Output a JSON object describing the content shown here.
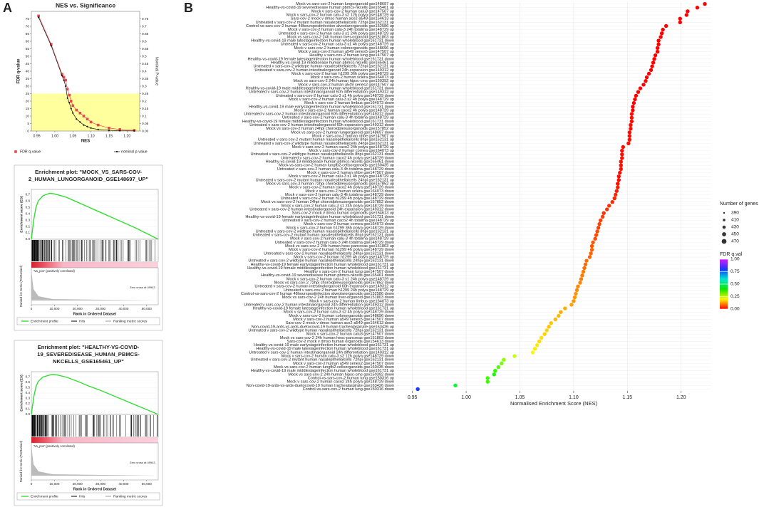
{
  "panel_labels": [
    "A",
    "B"
  ],
  "chart_data": [
    {
      "type": "scatter",
      "title": "NES vs. Significance",
      "x_label": "NES",
      "y_label": "FDR q-value",
      "y2_label": "Nominal P-value",
      "xlim": [
        0.935,
        1.235
      ],
      "ylim": [
        0,
        80
      ],
      "y2lim": [
        0,
        0.8
      ],
      "xticks": [
        0.95,
        {
          "value": 1.0,
          "label": "1.00"
        },
        1.05,
        {
          "value": 1.1,
          "label": "1.10"
        },
        1.15,
        {
          "value": 1.2,
          "label": "1.20"
        }
      ],
      "yticks": [
        0,
        5,
        10,
        15,
        20,
        25,
        30,
        35,
        40,
        45,
        50,
        55,
        60,
        65,
        70,
        75
      ],
      "y2ticks": [
        {
          "value": 0,
          "label": "0.00"
        },
        0.05,
        0.1,
        0.15,
        0.2,
        0.25,
        0.3,
        0.35,
        0.4,
        0.45,
        0.5,
        0.55,
        0.6,
        0.65,
        0.7,
        0.75
      ],
      "highlight_ylim": [
        0,
        25
      ],
      "highlight_color": "#ffff9e",
      "x": [
        0.955,
        0.99,
        1.02,
        1.025,
        1.03,
        1.035,
        1.04,
        1.045,
        1.05,
        1.06,
        1.07,
        1.08,
        1.09,
        1.1,
        1.12,
        1.15,
        1.18,
        1.22
      ],
      "series": [
        {
          "name": "FDR q-value",
          "color": "#e8474b",
          "values": [
            77,
            58,
            38,
            36,
            34,
            28,
            24,
            20,
            17,
            14,
            12,
            10,
            8,
            6,
            4,
            2,
            1,
            0.5
          ]
        },
        {
          "name": "nominal p-value",
          "color": "#111111",
          "axis": "y2",
          "values": [
            0.76,
            0.57,
            0.37,
            0.34,
            0.3,
            0.22,
            0.19,
            0.15,
            0.12,
            0.08,
            0.06,
            0.04,
            0.03,
            0.02,
            0.01,
            0.005,
            0.002,
            0.001
          ]
        }
      ]
    },
    {
      "type": "line",
      "title_lines": [
        "Enrichment plot: \"MOCK_VS_SARS-COV-",
        "2_HUMAN_LUNGORGANOID_GSE148697_UP\""
      ],
      "y_label": "Enrichment score (ES)",
      "y_label_2": "Ranked list metric (PreRanked)",
      "x_label": "Rank in Ordered Dataset",
      "annotations": [
        "'Va_pos' (positively correlated)",
        "Zero cross at 49943"
      ],
      "xlim": [
        0,
        55000
      ],
      "ylim": [
        0,
        0.78
      ],
      "xticks": [
        0,
        {
          "value": 10000,
          "label": "10,000"
        },
        {
          "value": 20000,
          "label": "20,000"
        },
        {
          "value": 30000,
          "label": "30,000"
        },
        {
          "value": 40000,
          "label": "40,000"
        },
        {
          "value": 50000,
          "label": "50,000"
        }
      ],
      "yticks": [
        {
          "value": 0,
          "label": "0.0"
        },
        0.1,
        0.2,
        0.3,
        0.4,
        0.5,
        0.6,
        0.7
      ],
      "x": [
        0,
        1000,
        2000,
        3000,
        5000,
        8000,
        10000,
        15000,
        20000,
        25000,
        30000,
        35000,
        40000,
        45000,
        50000,
        55000
      ],
      "series": [
        {
          "name": "Enrichment profile",
          "color": "#33dd33",
          "values": [
            0,
            0.3,
            0.5,
            0.6,
            0.68,
            0.72,
            0.71,
            0.66,
            0.58,
            0.5,
            0.42,
            0.34,
            0.26,
            0.18,
            0.09,
            0
          ]
        }
      ],
      "other_legend_entries": [
        "Hits",
        "Ranking metric scores"
      ]
    },
    {
      "type": "line",
      "title_lines": [
        "Enrichment plot: \"HEALTHY-VS-COVID-",
        "19_SEVEREDISEASE_HUMAN_PBMCS-",
        "NKCELLS_GSE165461_UP\""
      ],
      "y_label": "Enrichment score (ES)",
      "y_label_2": "Ranked list metric (PreRanked)",
      "x_label": "Rank in Ordered Dataset",
      "annotations": [
        "'Va_pos' (positively correlated)",
        "Zero cross at 49943"
      ],
      "xlim": [
        0,
        55000
      ],
      "ylim": [
        0,
        0.8
      ],
      "xticks": [
        0,
        {
          "value": 10000,
          "label": "10,000"
        },
        {
          "value": 20000,
          "label": "20,000"
        },
        {
          "value": 30000,
          "label": "30,000"
        },
        {
          "value": 40000,
          "label": "40,000"
        },
        {
          "value": 50000,
          "label": "50,000"
        }
      ],
      "yticks": [
        {
          "value": 0,
          "label": "0.0"
        },
        0.1,
        0.2,
        0.3,
        0.4,
        0.5,
        0.6,
        0.7
      ],
      "x": [
        0,
        1000,
        2000,
        3000,
        5000,
        9000,
        11000,
        15000,
        20000,
        25000,
        30000,
        35000,
        40000,
        45000,
        50000,
        55000
      ],
      "series": [
        {
          "name": "Enrichment profile",
          "color": "#33dd33",
          "values": [
            0,
            0.32,
            0.52,
            0.62,
            0.7,
            0.75,
            0.74,
            0.7,
            0.62,
            0.53,
            0.45,
            0.36,
            0.27,
            0.18,
            0.09,
            0
          ]
        }
      ],
      "other_legend_entries": [
        "Hits",
        "Ranking metric scores"
      ]
    },
    {
      "type": "dot",
      "x_label": "Normalised Enrichment Score (NES)",
      "xlim": [
        0.935,
        1.228
      ],
      "xticks": [
        0.95,
        {
          "value": 1.0,
          "label": "1.00"
        },
        1.05,
        {
          "value": 1.1,
          "label": "1.10"
        },
        1.15,
        {
          "value": 1.2,
          "label": "1.20"
        }
      ],
      "grid": true,
      "categories": [
        "Mock vs sars-cov-2 human lungorganoid gse148697 up",
        "Healthy-vs-covid-19 severedisease human pbmcs-nkcells gse165461 up",
        "Mock v sars-cov-2 human calu3 gse147507 up",
        "Mock v sars-cov-2 human calu-3 s2 12h polya gse148729 up",
        "Sars-cov-2 mock v dmso human ace2-a549 gse154613 up",
        "Untreated v sars-cov-2 mutant human nasalepithelialcells 72hpi gse162131 up",
        "Control-vs-sars-cov-2 human 48hourspostinfection alveolarorganoids gse152586 up",
        "Mock v sars-cov-2 human calu-3 24h totalrna gse148729 up",
        "Untreated v sars-cov-2 human calu-3 s1 24h polya gse148729 up",
        "Mock vs sars-cov-2 24h human liver-organoid gse151803 up",
        "Healthy-vs-covid-19 male latestageinfection human wholeblood gse161731 down",
        "Untreated v sars-cov-2 human calu-3 s1 4h polya gse148729 up",
        "Mock v sars-cov-2 human colonorganoids gse148696 up",
        "Mock v sars-cov-2 human a549 series5 gse147507 up",
        "Healthy v sars-cov-2 human lung gse147507 up",
        "Healthy-vs-covid-19 female latestageinfection human wholeblood gse161731 down",
        "Healthy-vs-covid-19 milddisease human pbmcs-nkcells gse165461 up",
        "Untreated v sars-cov-2 wildtype human nasalepithelialcells 72hpi gse162131 up",
        "Untreated v sars-cov-2 human intestinalorganoid 24h expansion gse149312 up",
        "Mock v sars-cov-2 human h1299 36h polya gse148729 up",
        "Mock v sars-cov-2 human sclera gse164073 up",
        "Mock vs sars-cov-2 24h human hipsc-cms gse150392 up",
        "Mock v sars-cov-2 human a549 series2 gse147507 up",
        "Healthy-vs-covid-19 male middlestageinfection human wholeblood gse161731 down",
        "Untreated v sars-cov-2 human intestinalorganoid 60h differentiation gse149312 up",
        "Untreated v sars-cov-2 human calu-3 s1 4h polya gse148729 down",
        "Mock v sars-cov-2 human calu-3 s2 4h polya gse148729 up",
        "Mock v sars-cov-2 human limbus gse164073 down",
        "Healthy-vs-covid-19 male earlystageinfection human wholeblood gse161731 down",
        "Mock v sars-cov-2 human caco2 4h polya gse148729 up",
        "Untreated v sars-cov-2 human intestinalorganoid 60h differentiation gse149312 down",
        "Untreated v sars-cov-2 human calu-3 4h totalrna gse148729 up",
        "Healthy-vs-covid-19 female middlestageinfection human wholeblood gse161731 down",
        "Untreated v sars-cov-2 human intestinalorganoid 60h expansion gse149312 down",
        "Mock vs sars-cov-2 human 24hpi choroidplexusorganoids gse157852 up",
        "Mock vs sars-cov-2 human lungorganoid gse148697 down",
        "Mock v sars-cov-2 human nhbe gse147507 up",
        "Untreated v sars-cov-2 mutant human nasalepithelialcells 8hpi gse162131 up",
        "Untreated v sars-cov-2 wildtype human nasalepithelialcells 24hpi gse162131 up",
        "Mock v sars-cov-2 human caco2 24h polya gse148729 up",
        "Mock v sars-cov-2 human cornea gse164073 up",
        "Untreated v sars-cov-2 wildtype human nasalepithelialcells 8hpi gse162131 down",
        "Untreated v sars-cov-2 human caco2 4h polya gse148729 down",
        "Healthy-vs-covid-19 milddisease human pbmcs-nkcells gse165461 down",
        "Mock-vs-sars-cov-2 human lungfb2-cellsorganoids gse160435 up",
        "Untreated v sars-cov-2 human calu-3 4h totalrna gse148729 down",
        "Mock v sars-cov-2 human nhbe gse147507 down",
        "Mock v sars-cov-2 human calu-3 s1 4h polya gse148729 up",
        "Untreated v sars-cov-2 mutant human nasalepithelialcells 24hpi gse162131 up",
        "Mock vs sars-cov-2 human 72hpi choroidplexusorganoids gse157852 up",
        "Mock v sars-cov-2 human caco2 4h polya gse148729 down",
        "Mock v sars-cov-2 human sclera gse164073 down",
        "Mock v sars-cov-2 human calu-3 4h totalrna gse148729 down",
        "Untreated v sars-cov-2 human h1299 4h polya gse148729 down",
        "Mock vs sars-cov-2 human 24hpi choroidplexusorganoids gse157852 down",
        "Mock v sars-cov-2 human calu-3 s1 24h polya gse148729 down",
        "Untreated v sars-cov-2 human intestinalorganoid 24h expansion gse149312 down",
        "Sars-cov-2 mock v dmso human organoids gse154613 up",
        "Healthy-vs-covid-19 female earlystageinfection human wholeblood gse161731 down",
        "Untreated v sars-cov-2 human caco2 4h totalrna gse148729 up",
        "Mock v sars-cov-2 human cornea gse164073 down",
        "Mock v sars-cov-2 human h1299 36h polya gse148729 down",
        "Untreated v sars-cov-2 wildtype human nasalepithelialcells 8hpi gse162131 up",
        "Untreated v sars-cov-2 mutant human nasalepithelialcells 8hpi gse162131 down",
        "Mock v sars-cov-2 human calu-3 4h totalrna gse148729 up",
        "Untreated v sars-cov-2 human calu-3 24h totalrna gse148729 down",
        "Mock vs sars-cov-2 24h human hesc-pancreas gse151803 up",
        "Mock v sars-cov-2 human h1299 4h polya gse148729 down",
        "Untreated v sars-cov-2 human nasalepithelialcells 24hpi gse162131 down",
        "Mock v sars-cov-2 human h1299 4h polya gse148729 up",
        "Untreated v sars-cov-2 wildtype human nasalepithelialcells 24hpi gse162131 down",
        "Healthy-vs-covid-19 female earlystageinfection human wholeblood gse161731 up",
        "Healthy-vs-covid-19 female middlestageinfection human wholeblood gse161731 up",
        "Healthy v sars-cov-2 human lung gse147507 down",
        "Healthy-vs-covid-19 severedisease human pbmcs-nkcells gse165461 down",
        "Mock v sars-cov-2 human calu-3 s1 24h polya gse148729 up",
        "Mock vs sars-cov-2 72hpi choroidplexusorganoids gse157852 down",
        "Untreated v sars-cov-2 human intestinalorganoid 60h expansion gse149312 up",
        "Untreated v sars-cov-2 human h1299 24h polya gse148729 up",
        "Control-vs-sars-cov-2 human 48hourspostinfection alveolarorganoids gse152586 down",
        "Mock vs sars-cov-2 24h human liver-organoid gse151803 down",
        "Mock v sars-cov-2 human limbus gse164073 up",
        "Untreated v sars-cov-2 human intestinalorganoid 24h differentiation gse149312 down",
        "Healthy-vs-covid-19 female latestageinfection human wholeblood gse161731 up",
        "Mock v sars-cov-2 human calu-3 s2 4h polya gse148729 down",
        "Mock v sars-cov-2 human colonorganoids gse148696 down",
        "Mock v sars-cov-2 human a549 series5 gse147507 down",
        "Sars-cov-2 mock v dmso human ace2-a549 gse154613 down",
        "Non-covid-19-ards-vs-ards-duetocovid-19 human trachealaspirate gse163426 up",
        "Untreated v sars-cov-2 wildtype human nasalepithelialcells 72hpi gse162131 down",
        "Mock v sars-cov-2 human calu3 gse147507 down",
        "Mock vs sars-cov-2 24h human hesc-pancreas gse151803 down",
        "Sars-cov-2 mock v dmso human organoids gse154613 down",
        "Healthy-vs-covid-19 male earlystageinfection human wholeblood gse161731 up",
        "Healthy-vs-covid-19 male latestageinfection human wholeblood gse161731 up",
        "Untreated v sars-cov-2 human intestinalorganoid 24h differentiation gse149312 up",
        "Mock v sars-cov-2 human calu-3 s2 12h polya gse148729 down",
        "Untreated v sars-cov-2 mutant human nasalepithelialcells 72hpi gse162131 down",
        "Mock v sars-cov-2 human a549 series2 gse147507 down",
        "Mock-vs-sars-cov-2 human lungfb2-cellsorganoids gse160435 down",
        "Healthy-vs-covid-19 male middlestageinfection human wholeblood gse161731 up",
        "Mock vs sars-cov-2 24h human hipsc-cms gse150392 down",
        "Control-vs-sars-cov-2 human lung gse150316 up",
        "Mock v sars-cov-2 human caco2 24h polya gse148729 down",
        "Non-covid-19-ards-vs-ards-duetocovid-19 human trachealaspirate gse163426 down",
        "Control-vs-sars-cov-2 human lung gse150316 down"
      ],
      "values": [
        1.222,
        1.215,
        1.206,
        1.205,
        1.199,
        1.199,
        1.186,
        1.183,
        1.182,
        1.181,
        1.179,
        1.179,
        1.178,
        1.178,
        1.176,
        1.175,
        1.174,
        1.173,
        1.172,
        1.17,
        1.168,
        1.167,
        1.165,
        1.162,
        1.16,
        1.158,
        1.157,
        1.156,
        1.155,
        1.155,
        1.154,
        1.154,
        1.154,
        1.153,
        1.153,
        1.152,
        1.152,
        1.152,
        1.151,
        1.146,
        1.145,
        1.145,
        1.145,
        1.144,
        1.144,
        1.144,
        1.143,
        1.142,
        1.142,
        1.141,
        1.141,
        1.14,
        1.139,
        1.138,
        1.136,
        1.133,
        1.131,
        1.128,
        1.127,
        1.125,
        1.124,
        1.123,
        1.122,
        1.121,
        1.12,
        1.118,
        1.117,
        1.117,
        1.116,
        1.115,
        1.112,
        1.111,
        1.11,
        1.109,
        1.108,
        1.107,
        1.106,
        1.104,
        1.103,
        1.102,
        1.101,
        1.1,
        1.098,
        1.092,
        1.088,
        1.086,
        1.083,
        1.079,
        1.077,
        1.075,
        1.073,
        1.07,
        1.068,
        1.066,
        1.064,
        1.062,
        1.045,
        1.035,
        1.033,
        1.03,
        1.027,
        1.026,
        1.02,
        1.02,
        0.99,
        0.955
      ],
      "fdr_q_values": [
        0,
        0,
        0,
        0,
        0,
        0,
        0,
        0,
        0,
        0,
        0,
        0,
        0,
        0,
        0,
        0,
        0,
        0,
        0,
        0,
        0,
        0,
        0,
        0,
        0,
        0,
        0,
        0,
        0,
        0,
        0.01,
        0.01,
        0.01,
        0.01,
        0.01,
        0.01,
        0.01,
        0.01,
        0.01,
        0.01,
        0.01,
        0.01,
        0.01,
        0.01,
        0.01,
        0.01,
        0.01,
        0.01,
        0.01,
        0.01,
        0.02,
        0.02,
        0.03,
        0.03,
        0.03,
        0.04,
        0.04,
        0.04,
        0.05,
        0.05,
        0.05,
        0.05,
        0.06,
        0.06,
        0.06,
        0.07,
        0.07,
        0.08,
        0.08,
        0.08,
        0.09,
        0.09,
        0.09,
        0.1,
        0.1,
        0.1,
        0.11,
        0.11,
        0.11,
        0.12,
        0.12,
        0.12,
        0.13,
        0.14,
        0.14,
        0.15,
        0.15,
        0.16,
        0.16,
        0.17,
        0.17,
        0.18,
        0.18,
        0.19,
        0.19,
        0.2,
        0.25,
        0.3,
        0.32,
        0.35,
        0.38,
        0.4,
        0.36,
        0.37,
        0.45,
        0.8
      ],
      "size_legend_title": "Number of genes",
      "size_legend": [
        390,
        410,
        430,
        450,
        470
      ],
      "color_legend_title": "FDR q.val",
      "color_ticks": [
        {
          "value": 0,
          "label": "0.00"
        },
        0.25,
        {
          "value": 0.5,
          "label": "0.50"
        },
        0.75,
        {
          "value": 1,
          "label": "1.00"
        }
      ]
    }
  ]
}
